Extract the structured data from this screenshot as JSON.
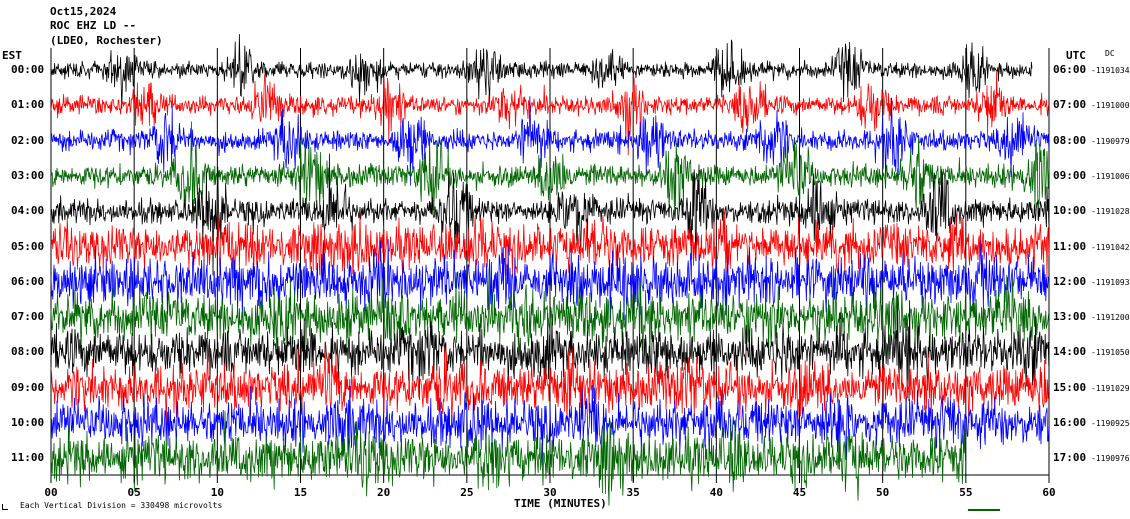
{
  "header": {
    "date": "Oct15,2024",
    "station": "ROC EHZ LD --",
    "network": "(LDEO, Rochester)"
  },
  "left_axis_label": "EST",
  "right_axis_label": "UTC",
  "dc_label": "DC",
  "footer": {
    "time_label": "TIME (MINUTES)",
    "scale_note": "Each Vertical Division = 330498 microvolts"
  },
  "colors": {
    "black": "#000000",
    "red": "#ff0000",
    "blue": "#0000ff",
    "green": "#006600",
    "grid": "#000000"
  },
  "chart_data": {
    "type": "line",
    "xlabel": "TIME (MINUTES)",
    "xlim": [
      0,
      60
    ],
    "x_ticks": [
      "00",
      "05",
      "10",
      "15",
      "20",
      "25",
      "30",
      "35",
      "40",
      "45",
      "50",
      "55",
      "60"
    ],
    "grid": true,
    "color_cycle": [
      "black",
      "red",
      "blue",
      "green"
    ],
    "rows": [
      {
        "est": "00:00",
        "utc": "06:00",
        "dc": "-1191034",
        "color": "black",
        "activity": 0.25,
        "end_minute": 59
      },
      {
        "est": "01:00",
        "utc": "07:00",
        "dc": "-1191000",
        "color": "red",
        "activity": 0.3,
        "end_minute": 60
      },
      {
        "est": "02:00",
        "utc": "08:00",
        "dc": "-1190979",
        "color": "blue",
        "activity": 0.35,
        "end_minute": 60
      },
      {
        "est": "03:00",
        "utc": "09:00",
        "dc": "-1191006",
        "color": "green",
        "activity": 0.4,
        "end_minute": 60
      },
      {
        "est": "04:00",
        "utc": "10:00",
        "dc": "-1191028",
        "color": "black",
        "activity": 0.45,
        "end_minute": 60
      },
      {
        "est": "05:00",
        "utc": "11:00",
        "dc": "-1191042",
        "color": "red",
        "activity": 0.9,
        "end_minute": 60
      },
      {
        "est": "06:00",
        "utc": "12:00",
        "dc": "-1191093",
        "color": "blue",
        "activity": 1.0,
        "end_minute": 60
      },
      {
        "est": "07:00",
        "utc": "13:00",
        "dc": "-1191200",
        "color": "green",
        "activity": 1.0,
        "end_minute": 60
      },
      {
        "est": "08:00",
        "utc": "14:00",
        "dc": "-1191050",
        "color": "black",
        "activity": 0.95,
        "end_minute": 60
      },
      {
        "est": "09:00",
        "utc": "15:00",
        "dc": "-1191029",
        "color": "red",
        "activity": 0.95,
        "end_minute": 60
      },
      {
        "est": "10:00",
        "utc": "16:00",
        "dc": "-1190925",
        "color": "blue",
        "activity": 0.95,
        "end_minute": 60
      },
      {
        "est": "11:00",
        "utc": "17:00",
        "dc": "-1190976",
        "color": "green",
        "activity": 1.0,
        "end_minute": 55
      }
    ]
  }
}
